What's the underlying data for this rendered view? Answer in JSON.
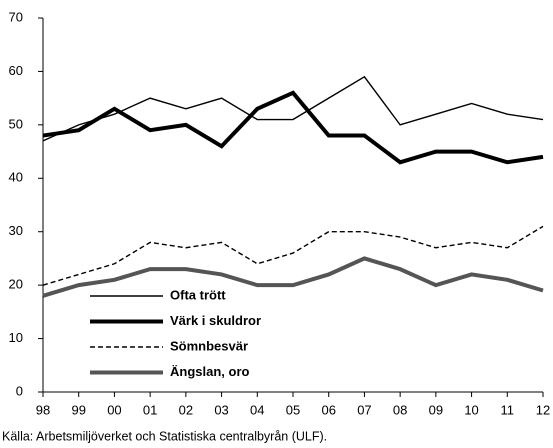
{
  "chart_data": {
    "type": "line",
    "categories": [
      "98",
      "99",
      "00",
      "01",
      "02",
      "03",
      "04",
      "05",
      "06",
      "07",
      "08",
      "09",
      "10",
      "11",
      "12"
    ],
    "series": [
      {
        "name": "Ofta trött",
        "color": "#000000",
        "weight": "thin",
        "dashed": false,
        "values": [
          47,
          50,
          52,
          55,
          53,
          55,
          51,
          51,
          55,
          59,
          50,
          52,
          54,
          52,
          51
        ]
      },
      {
        "name": "Värk i skuldror",
        "color": "#000000",
        "weight": "thick",
        "dashed": false,
        "values": [
          48,
          49,
          53,
          49,
          50,
          46,
          53,
          56,
          48,
          48,
          43,
          45,
          45,
          43,
          44
        ]
      },
      {
        "name": "Sömnbesvär",
        "color": "#000000",
        "weight": "thin",
        "dashed": true,
        "values": [
          20,
          22,
          24,
          28,
          27,
          28,
          24,
          26,
          30,
          30,
          29,
          27,
          28,
          27,
          31
        ]
      },
      {
        "name": "Ängslan, oro",
        "color": "#555555",
        "weight": "thick",
        "dashed": false,
        "values": [
          18,
          20,
          21,
          23,
          23,
          22,
          20,
          20,
          22,
          25,
          23,
          20,
          22,
          21,
          19
        ]
      }
    ],
    "ylim": [
      0,
      70
    ],
    "yticks": [
      0,
      10,
      20,
      30,
      40,
      50,
      60,
      70
    ],
    "source": "Källa: Arbetsmiljöverket och Statistiska centralbyrån (ULF)."
  }
}
